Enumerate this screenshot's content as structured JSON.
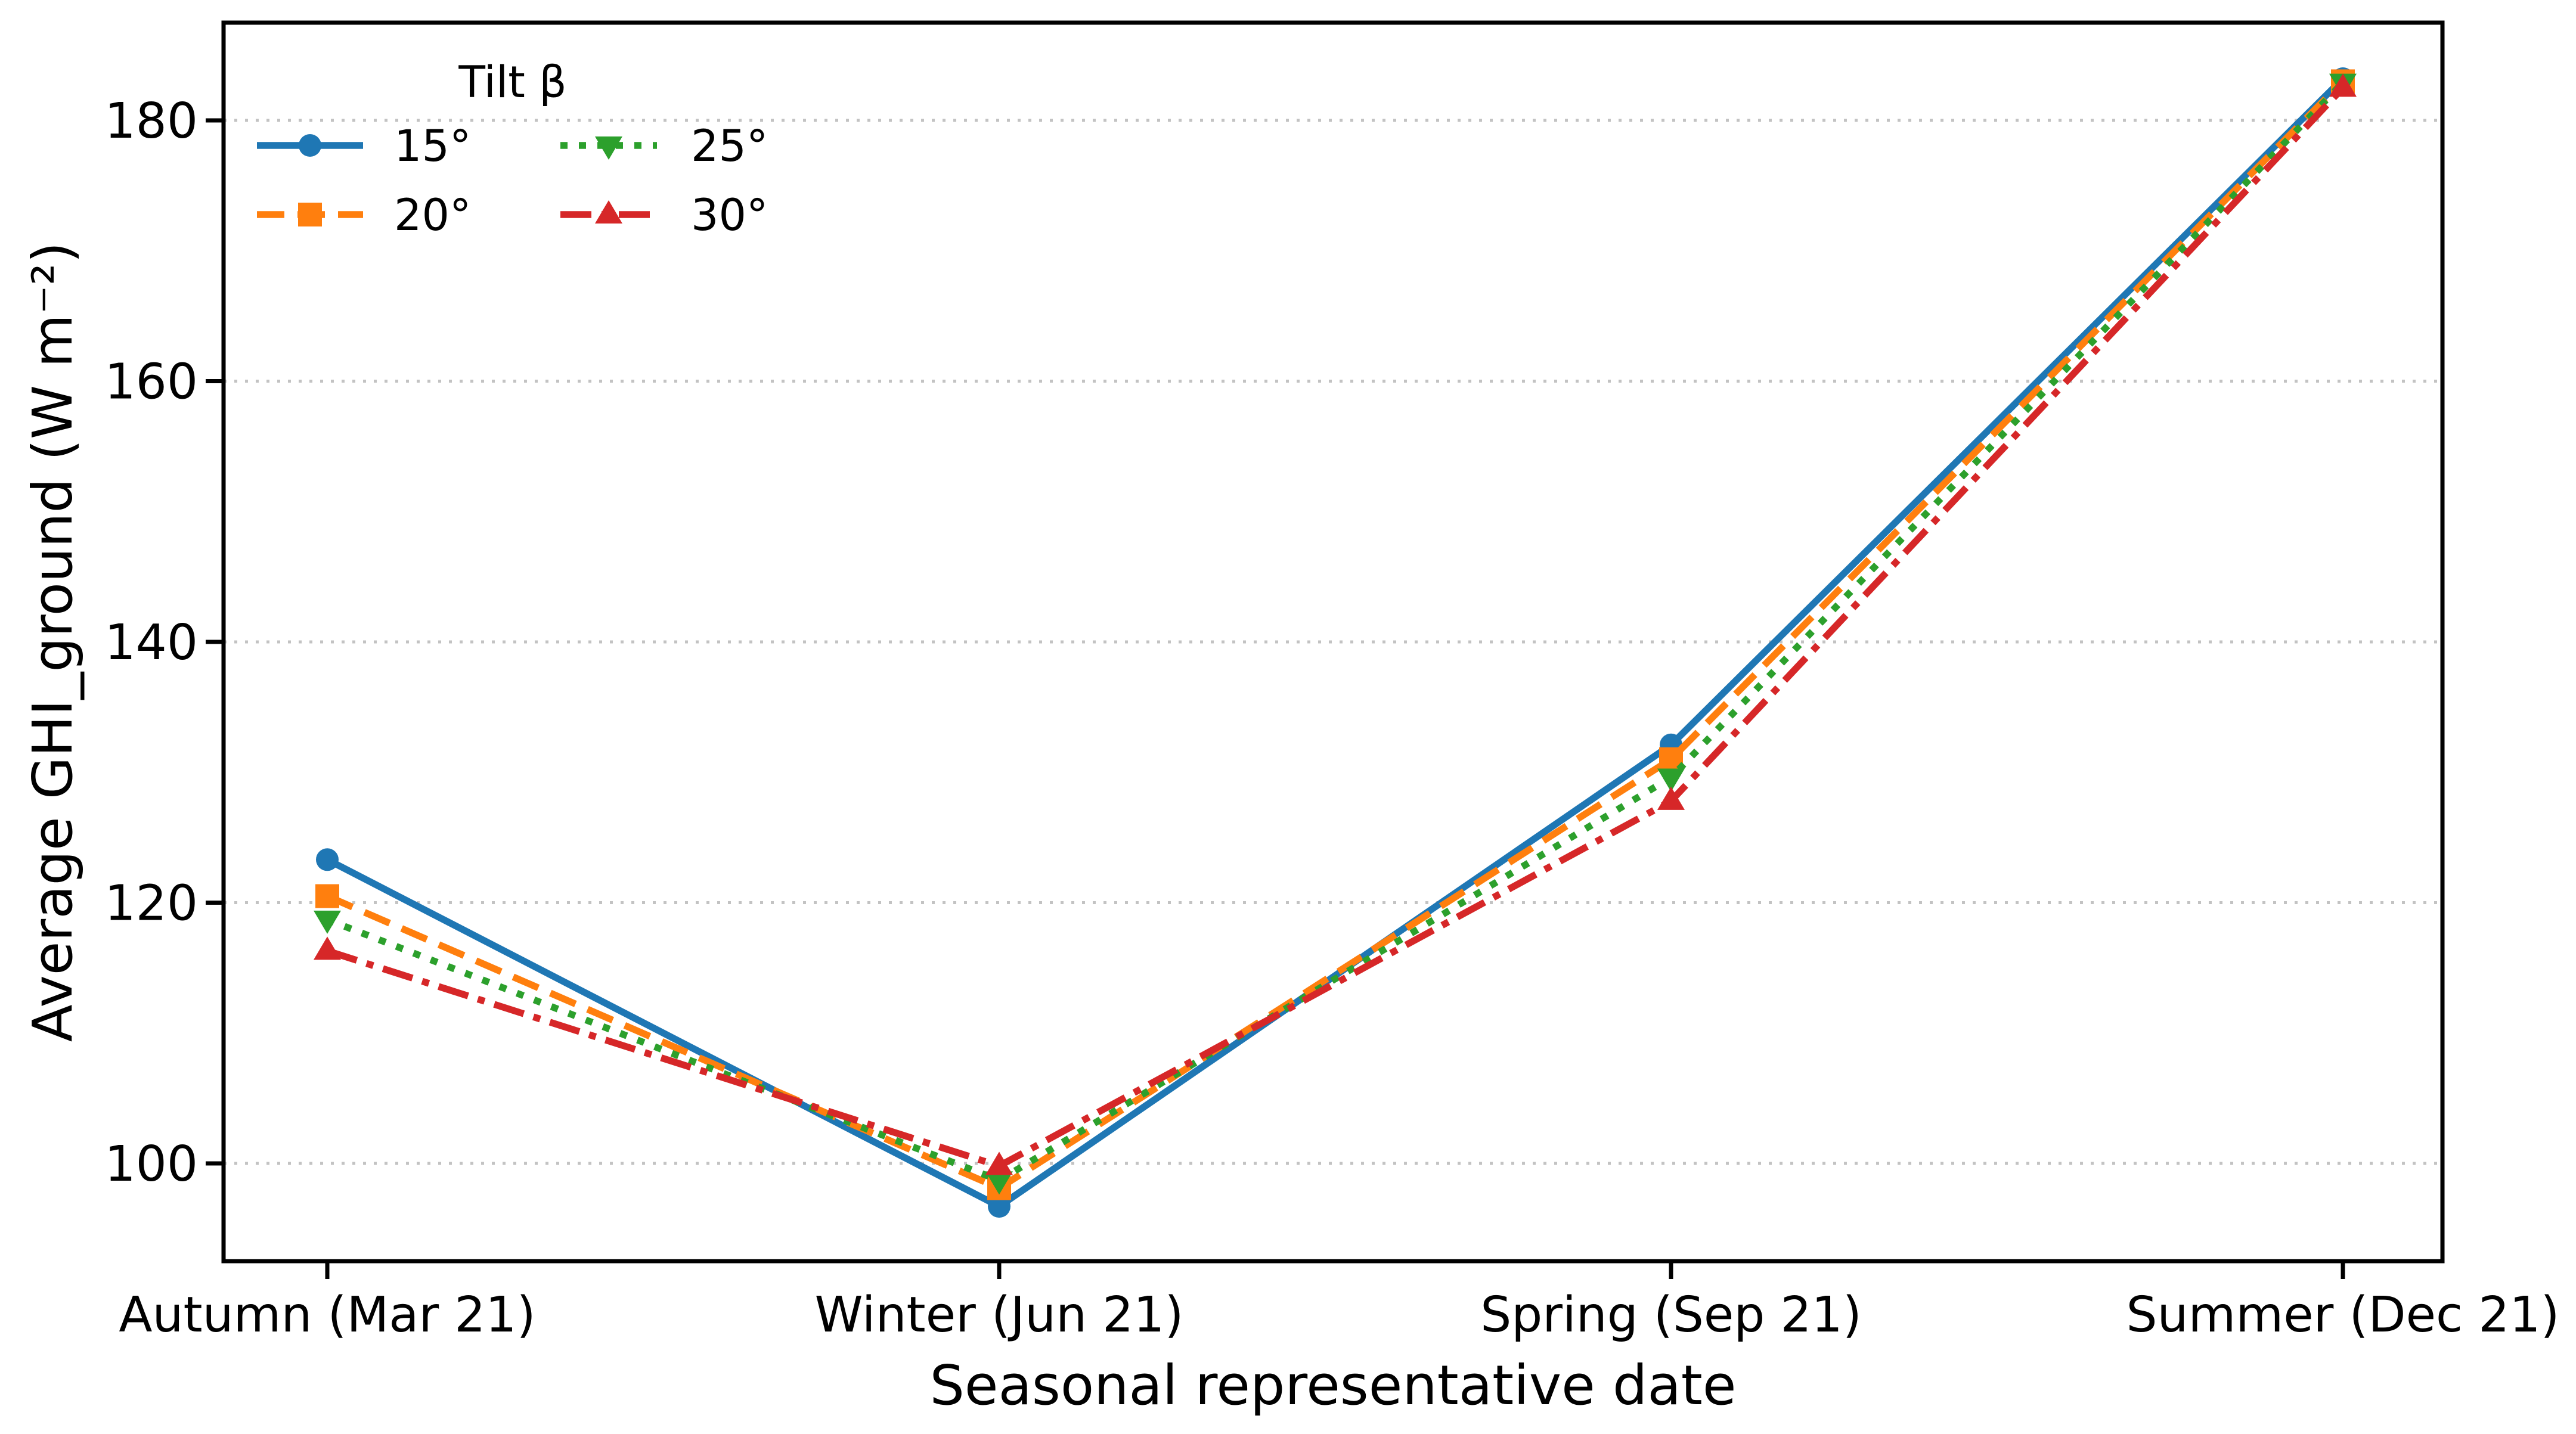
{
  "chart_data": {
    "type": "line",
    "title": "",
    "xlabel": "Seasonal representative date",
    "ylabel": "Average GHI_ground (W m⁻²)",
    "categories": [
      "Autumn (Mar 21)",
      "Winter (Jun 21)",
      "Spring (Sep 21)",
      "Summer (Dec 21)"
    ],
    "series": [
      {
        "name": "15°",
        "color": "#1f77b4",
        "marker": "circle",
        "linestyle": "solid",
        "values": [
          123.3,
          96.7,
          132.1,
          183.2
        ]
      },
      {
        "name": "20°",
        "color": "#ff7f0e",
        "marker": "square",
        "linestyle": "dashed",
        "values": [
          120.5,
          98.1,
          131.0,
          183.0
        ]
      },
      {
        "name": "25°",
        "color": "#2ca02c",
        "marker": "triangle-down",
        "linestyle": "dotted",
        "values": [
          118.7,
          98.7,
          129.6,
          182.9
        ]
      },
      {
        "name": "30°",
        "color": "#d62728",
        "marker": "triangle-up",
        "linestyle": "dashdot",
        "values": [
          116.3,
          99.8,
          127.8,
          182.5
        ]
      }
    ],
    "yticks": [
      100,
      120,
      140,
      160,
      180
    ],
    "ylim": [
      92.5,
      187.5
    ],
    "grid": {
      "axis": "y",
      "style": "dotted",
      "color": "#c3c3c3"
    },
    "axis_color": "#000000",
    "background": "#ffffff",
    "legend": {
      "title": "Tilt β",
      "position": "upper-left",
      "columns": 2,
      "labels": [
        "15°",
        "20°",
        "25°",
        "30°"
      ]
    }
  }
}
